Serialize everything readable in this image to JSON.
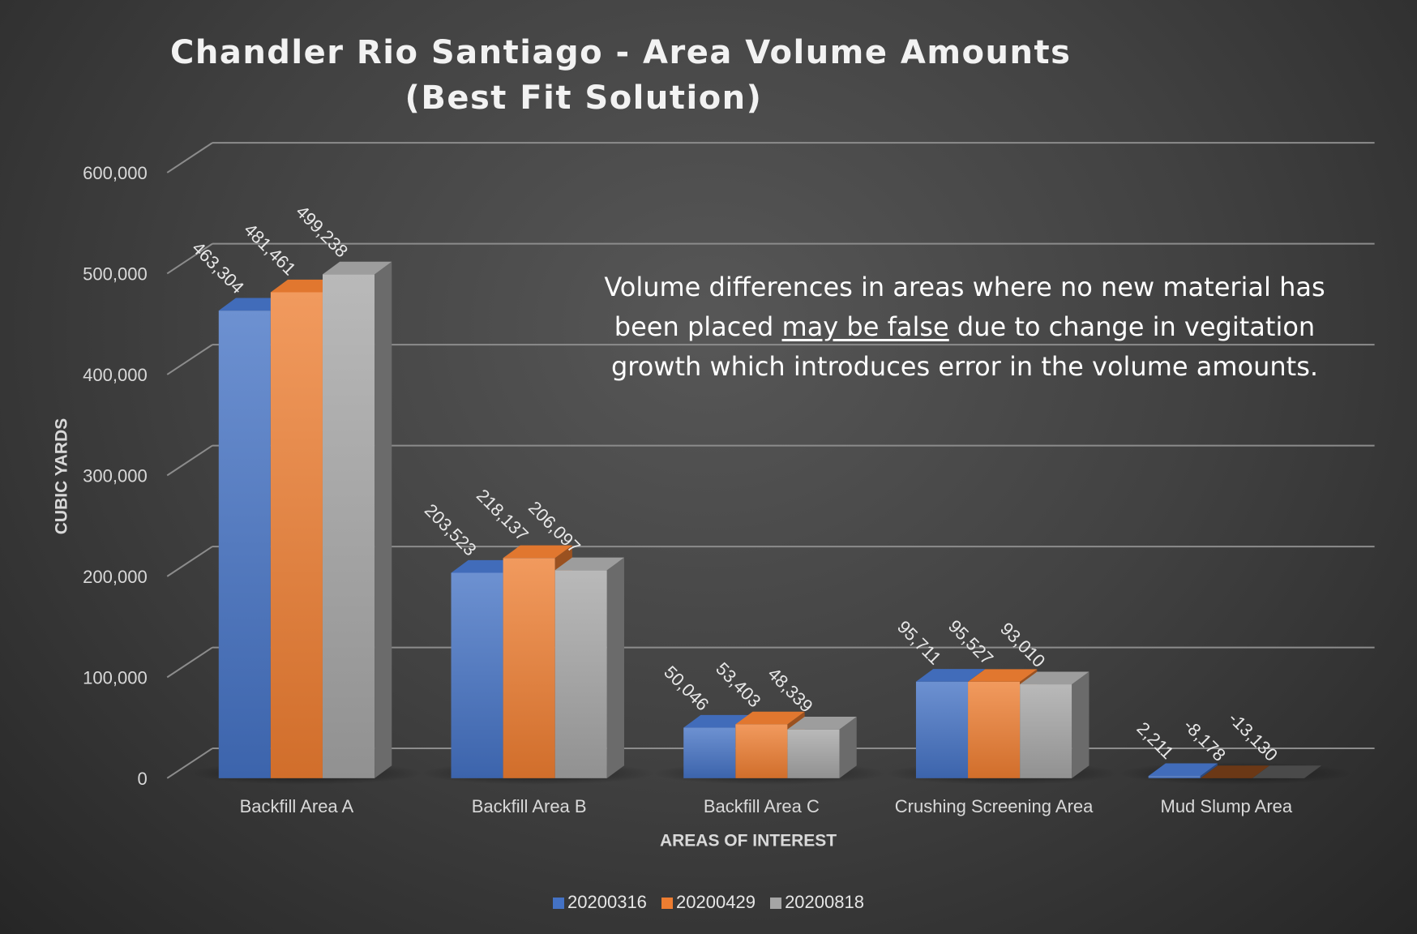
{
  "chart_data": {
    "type": "bar",
    "title": "Chandler Rio Santiago - Area Volume Amounts",
    "subtitle": "(Best Fit Solution)",
    "xlabel": "AREAS OF INTEREST",
    "ylabel": "CUBIC YARDS",
    "categories": [
      "Backfill Area A",
      "Backfill Area B",
      "Backfill Area C",
      "Crushing Screening Area",
      "Mud Slump Area"
    ],
    "series": [
      {
        "name": "20200316",
        "values": [
          463304,
          203523,
          50046,
          95711,
          2211
        ],
        "labels": [
          "463,304",
          "203,523",
          "50,046",
          "95,711",
          "2,211"
        ],
        "color": "#4472c4"
      },
      {
        "name": "20200429",
        "values": [
          481461,
          218137,
          53403,
          95527,
          -8178
        ],
        "labels": [
          "481,461",
          "218,137",
          "53,403",
          "95,527",
          "-8,178"
        ],
        "color": "#ed7d31"
      },
      {
        "name": "20200818",
        "values": [
          499238,
          206097,
          48339,
          93010,
          -13130
        ],
        "labels": [
          "499,238",
          "206,097",
          "48,339",
          "93,010",
          "-13,130"
        ],
        "color": "#a5a5a5"
      }
    ],
    "ylim": [
      0,
      600000
    ],
    "yticks": [
      0,
      100000,
      200000,
      300000,
      400000,
      500000,
      600000
    ],
    "ytick_labels": [
      "0",
      "100,000",
      "200,000",
      "300,000",
      "400,000",
      "500,000",
      "600,000"
    ],
    "grid": true,
    "legend_position": "bottom",
    "style": "3d-column"
  },
  "annotation": {
    "before": "Volume differences in areas where no new material has been placed ",
    "underlined": "may be false",
    "after": " due to change in vegitation growth which introduces error in the volume amounts."
  }
}
